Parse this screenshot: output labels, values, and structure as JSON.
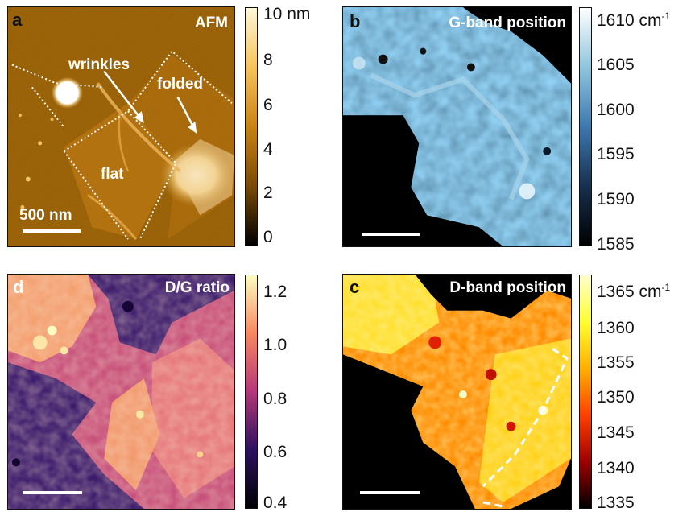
{
  "panels": {
    "a": {
      "letter": "a",
      "title": "AFM",
      "scale_label": "500 nm",
      "annotations": {
        "wrinkles": "wrinkles",
        "folded": "folded",
        "flat": "flat"
      },
      "colorbar": {
        "ticks": [
          "10 nm",
          "8",
          "6",
          "4",
          "2",
          "0"
        ],
        "colors": [
          "#fff6d8",
          "#f6c35a",
          "#c98313",
          "#7a4a05",
          "#000000"
        ]
      }
    },
    "b": {
      "letter": "b",
      "title": "G-band position",
      "colorbar": {
        "ticks": [
          "1610 cm",
          "1605",
          "1600",
          "1595",
          "1590",
          "1585"
        ],
        "unit_sup": "-1",
        "colors": [
          "#ffffff",
          "#8fc4dd",
          "#3f78ad",
          "#17304f",
          "#000000"
        ]
      }
    },
    "d": {
      "letter": "d",
      "title": "D/G ratio",
      "colorbar": {
        "ticks": [
          "1.2",
          "1.0",
          "0.8",
          "0.6",
          "0.4"
        ],
        "colors": [
          "#fcfdbf",
          "#f8875f",
          "#b5367a",
          "#2c115f",
          "#000004"
        ]
      }
    },
    "c": {
      "letter": "c",
      "title": "D-band position",
      "colorbar": {
        "ticks": [
          "1365 cm",
          "1360",
          "1355",
          "1350",
          "1345",
          "1340",
          "1335"
        ],
        "unit_sup": "-1",
        "colors": [
          "#ffffd0",
          "#ffff30",
          "#ffb000",
          "#ff4000",
          "#a00000",
          "#000000"
        ]
      }
    }
  }
}
